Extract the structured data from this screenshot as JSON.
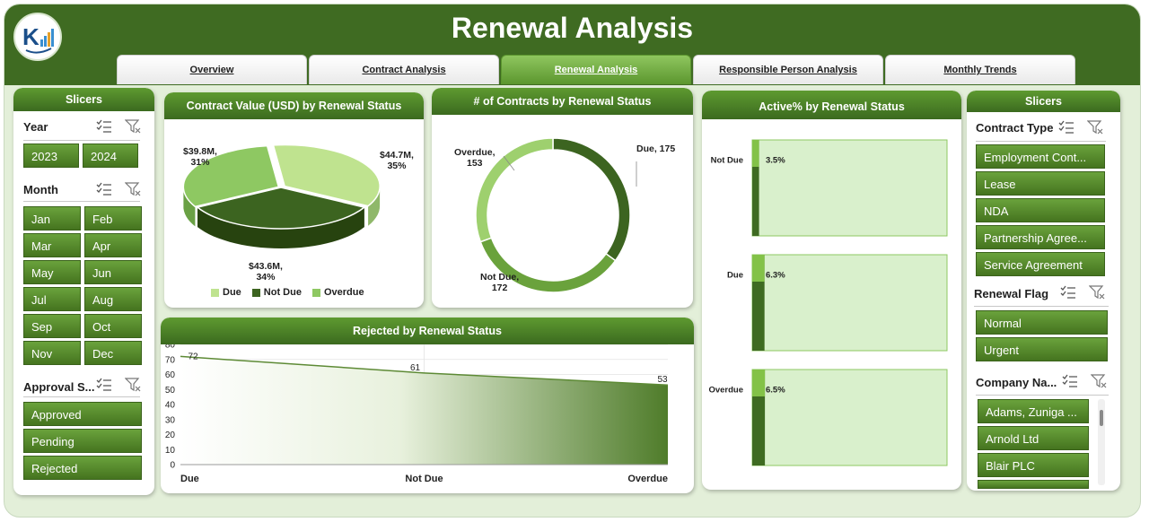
{
  "header": {
    "title": "Renewal Analysis",
    "logo_icon": "kpi-logo-icon"
  },
  "tabs": [
    {
      "label": "Overview",
      "active": false
    },
    {
      "label": "Contract Analysis",
      "active": false
    },
    {
      "label": "Renewal Analysis",
      "active": true
    },
    {
      "label": "Responsible Person Analysis",
      "active": false
    },
    {
      "label": "Monthly Trends",
      "active": false
    }
  ],
  "left_slicers": {
    "title": "Slicers",
    "year": {
      "title": "Year",
      "items": [
        "2023",
        "2024"
      ]
    },
    "month": {
      "title": "Month",
      "items": [
        "Jan",
        "Feb",
        "Mar",
        "Apr",
        "May",
        "Jun",
        "Jul",
        "Aug",
        "Sep",
        "Oct",
        "Nov",
        "Dec"
      ]
    },
    "approval": {
      "title": "Approval S...",
      "items": [
        "Approved",
        "Pending",
        "Rejected"
      ]
    }
  },
  "right_slicers": {
    "title": "Slicers",
    "contract_type": {
      "title": "Contract Type",
      "items": [
        "Employment Cont...",
        "Lease",
        "NDA",
        "Partnership Agree...",
        "Service Agreement"
      ]
    },
    "renewal_flag": {
      "title": "Renewal Flag",
      "items": [
        "Normal",
        "Urgent"
      ]
    },
    "company_name": {
      "title": "Company Na...",
      "items": [
        "Adams, Zuniga ...",
        "Arnold Ltd",
        "Blair PLC"
      ]
    }
  },
  "colors": {
    "dark_green": "#3f6b22",
    "mid_green": "#6aa23c",
    "light_green": "#b8de8c",
    "pale_green": "#d9f0cc"
  },
  "chart_data": [
    {
      "type": "pie",
      "title": "Contract Value (USD) by Renewal Status",
      "categories": [
        "Due",
        "Not Due",
        "Overdue"
      ],
      "values": [
        44.7,
        43.6,
        39.8
      ],
      "unit": "M",
      "labels": [
        {
          "line1": "$44.7M,",
          "line2": "35%"
        },
        {
          "line1": "$43.6M,",
          "line2": "34%"
        },
        {
          "line1": "$39.8M,",
          "line2": "31%"
        }
      ],
      "colors": [
        "#bfe38f",
        "#3c6420",
        "#8ec862"
      ]
    },
    {
      "type": "pie",
      "title": "# of Contracts by Renewal Status",
      "categories": [
        "Due",
        "Not Due",
        "Overdue"
      ],
      "values": [
        175,
        172,
        153
      ],
      "labels": [
        {
          "line1": "Due, 175"
        },
        {
          "line1": "Not Due,",
          "line2": "172"
        },
        {
          "line1": "Overdue,",
          "line2": "153"
        }
      ],
      "colors": [
        "#3c6420",
        "#6aa23c",
        "#9ed06e"
      ]
    },
    {
      "type": "area",
      "title": "Rejected by Renewal Status",
      "categories": [
        "Due",
        "Not Due",
        "Overdue"
      ],
      "values": [
        72,
        61,
        53
      ],
      "ylim": [
        0,
        80
      ],
      "yticks": [
        0,
        10,
        20,
        30,
        40,
        50,
        60,
        70,
        80
      ]
    },
    {
      "type": "bar",
      "title": "Active% by Renewal Status",
      "categories": [
        "Not Due",
        "Due",
        "Overdue"
      ],
      "values": [
        3.5,
        6.3,
        6.5
      ],
      "value_labels": [
        "3.5%",
        "6.3%",
        "6.5%"
      ],
      "xlim": [
        0,
        100
      ]
    }
  ]
}
